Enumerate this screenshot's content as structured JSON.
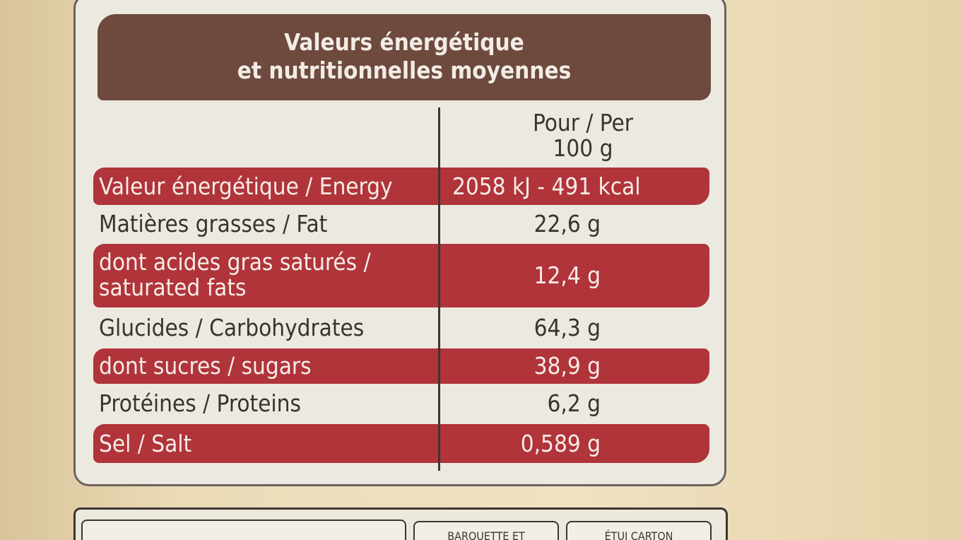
{
  "title": [
    "Valeurs énergétique",
    "et nutritionnelles moyennes"
  ],
  "header": [
    "Pour / Per",
    "100 g"
  ],
  "rows": [
    {
      "label": [
        "Valeur énergétique / Energy"
      ],
      "value": "2058 kJ - 491 kcal",
      "highlight": true
    },
    {
      "label": [
        "Matières grasses / Fat"
      ],
      "value": "22,6 g",
      "highlight": false
    },
    {
      "label": [
        "dont acides gras saturés /",
        "saturated fats"
      ],
      "value": "12,4 g",
      "highlight": true
    },
    {
      "label": [
        "Glucides / Carbohydrates"
      ],
      "value": "64,3 g",
      "highlight": false
    },
    {
      "label": [
        "dont sucres / sugars"
      ],
      "value": "38,9 g",
      "highlight": true
    },
    {
      "label": [
        "Protéines / Proteins"
      ],
      "value": "6,2 g",
      "highlight": false
    },
    {
      "label": [
        "Sel / Salt"
      ],
      "value": "0,589 g",
      "highlight": true
    }
  ],
  "footer": [
    "BARQUETTE ET",
    "ÉTUI CARTON"
  ]
}
